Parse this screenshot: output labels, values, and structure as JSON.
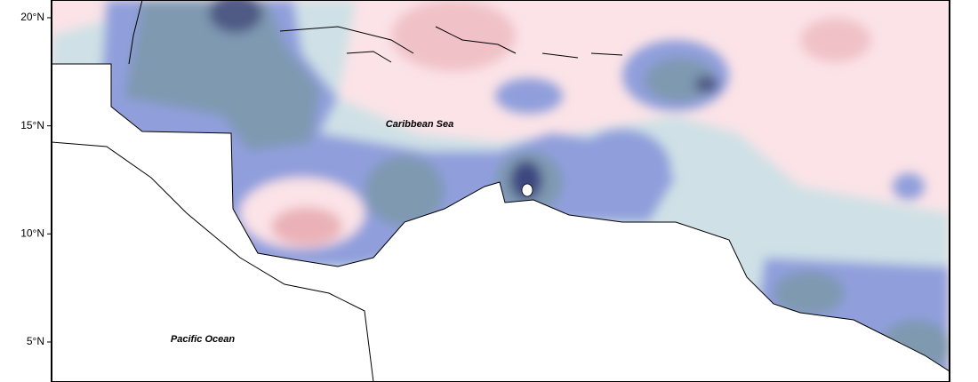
{
  "map": {
    "ylim": [
      3.15,
      20.82
    ],
    "lat_ticks": [
      {
        "value": 20,
        "label": "20°N"
      },
      {
        "value": 15,
        "label": "15°N"
      },
      {
        "value": 10,
        "label": "10°N"
      },
      {
        "value": 5,
        "label": "5°N"
      }
    ],
    "labels": [
      "Caribbean Sea",
      "Pacific Ocean"
    ]
  }
}
